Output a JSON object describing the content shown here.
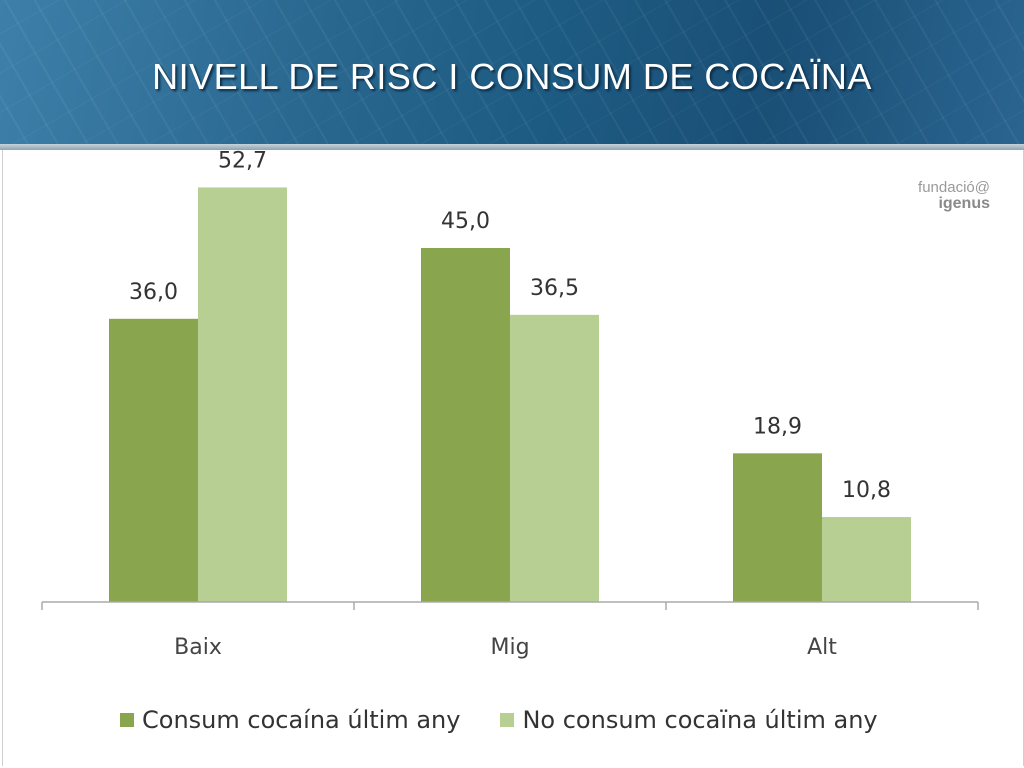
{
  "title": "NIVELL DE RISC I CONSUM DE COCAÏNA",
  "logo": {
    "line1": "fundació@",
    "line2": "igenus"
  },
  "colors": {
    "series1": "#89a54e",
    "series2": "#b7cf93",
    "axis": "#aaaaaa"
  },
  "chart_data": {
    "type": "bar",
    "categories": [
      "Baix",
      "Mig",
      "Alt"
    ],
    "series": [
      {
        "name": "Consum cocaína últim any",
        "values": [
          36.0,
          45.0,
          18.9
        ],
        "labels": [
          "36,0",
          "45,0",
          "18,9"
        ]
      },
      {
        "name": "No consum cocaïna últim any",
        "values": [
          52.7,
          36.5,
          10.8
        ],
        "labels": [
          "52,7",
          "36,5",
          "10,8"
        ]
      }
    ],
    "ylim": [
      0,
      60
    ],
    "legend": "bottom",
    "grid": false
  }
}
